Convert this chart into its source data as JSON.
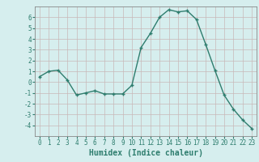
{
  "x": [
    0,
    1,
    2,
    3,
    4,
    5,
    6,
    7,
    8,
    9,
    10,
    11,
    12,
    13,
    14,
    15,
    16,
    17,
    18,
    19,
    20,
    21,
    22,
    23
  ],
  "y": [
    0.5,
    1.0,
    1.1,
    0.2,
    -1.2,
    -1.0,
    -0.8,
    -1.1,
    -1.1,
    -1.1,
    -0.3,
    3.2,
    4.5,
    6.0,
    6.7,
    6.5,
    6.6,
    5.8,
    3.5,
    1.1,
    -1.2,
    -2.5,
    -3.5,
    -4.3
  ],
  "line_color": "#2e7d6e",
  "marker": "+",
  "bg_color": "#d6eeee",
  "grid_color": "#c8b8b8",
  "xlabel": "Humidex (Indice chaleur)",
  "xlim": [
    -0.5,
    23.5
  ],
  "ylim": [
    -5,
    7
  ],
  "yticks": [
    -4,
    -3,
    -2,
    -1,
    0,
    1,
    2,
    3,
    4,
    5,
    6
  ],
  "xticks": [
    0,
    1,
    2,
    3,
    4,
    5,
    6,
    7,
    8,
    9,
    10,
    11,
    12,
    13,
    14,
    15,
    16,
    17,
    18,
    19,
    20,
    21,
    22,
    23
  ],
  "tick_fontsize": 5.5,
  "xlabel_fontsize": 7,
  "linewidth": 1.0,
  "markersize": 3.5,
  "markeredgewidth": 1.0
}
